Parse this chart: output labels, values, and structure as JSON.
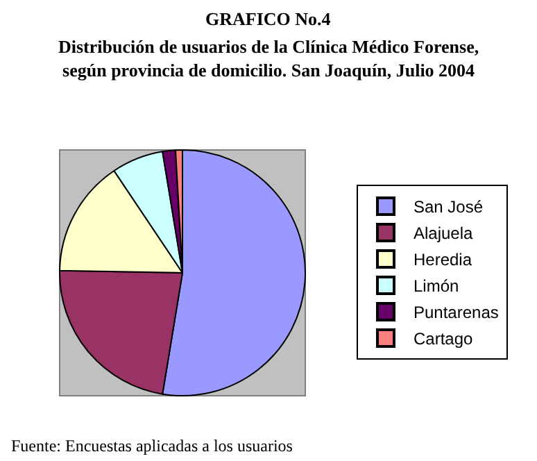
{
  "chart_data": {
    "type": "pie",
    "title": "GRAFICO No.4",
    "subtitle": "Distribución de usuarios de la Clínica Médico Forense,\nsegún provincia de domicilio. San Joaquín, Julio 2004",
    "categories": [
      "San José",
      "Alajuela",
      "Heredia",
      "Limón",
      "Puntarenas",
      "Cartago"
    ],
    "values": [
      52.6,
      22.7,
      15.3,
      6.8,
      1.7,
      0.9
    ],
    "colors": [
      "#9999ff",
      "#993366",
      "#ffffcc",
      "#ccffff",
      "#660066",
      "#ff8080"
    ],
    "legend": "right",
    "annotations": [
      "Fuente: Encuestas aplicadas a los usuarios"
    ]
  }
}
